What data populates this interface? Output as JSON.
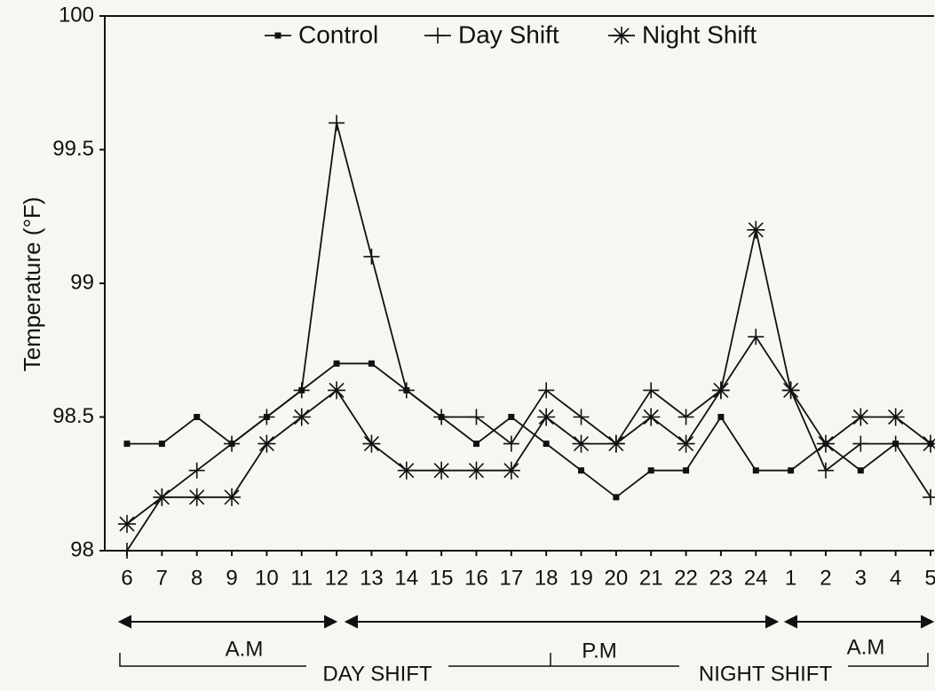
{
  "chart_data": {
    "type": "line",
    "ylabel": "Temperature (°F)",
    "categories": [
      "6",
      "7",
      "8",
      "9",
      "10",
      "11",
      "12",
      "13",
      "14",
      "15",
      "16",
      "17",
      "18",
      "19",
      "20",
      "21",
      "22",
      "23",
      "24",
      "1",
      "2",
      "3",
      "4",
      "5"
    ],
    "series": [
      {
        "name": "Control",
        "color": "#111111",
        "marker": "square",
        "values": [
          98.4,
          98.4,
          98.5,
          98.4,
          98.5,
          98.6,
          98.7,
          98.7,
          98.6,
          98.5,
          98.4,
          98.5,
          98.4,
          98.3,
          98.2,
          98.3,
          98.3,
          98.5,
          98.3,
          98.3,
          98.4,
          98.3,
          98.4,
          98.4
        ]
      },
      {
        "name": "Day Shift",
        "color": "#111111",
        "marker": "plus",
        "values": [
          98.0,
          98.2,
          98.3,
          98.4,
          98.5,
          98.6,
          99.6,
          99.1,
          98.6,
          98.5,
          98.5,
          98.4,
          98.6,
          98.5,
          98.4,
          98.6,
          98.5,
          98.6,
          98.8,
          98.6,
          98.3,
          98.4,
          98.4,
          98.2
        ]
      },
      {
        "name": "Night Shift",
        "color": "#111111",
        "marker": "star",
        "values": [
          98.1,
          98.2,
          98.2,
          98.2,
          98.4,
          98.5,
          98.6,
          98.4,
          98.3,
          98.3,
          98.3,
          98.3,
          98.5,
          98.4,
          98.4,
          98.5,
          98.4,
          98.6,
          99.2,
          98.6,
          98.4,
          98.5,
          98.5,
          98.4
        ]
      }
    ],
    "ylim": [
      98,
      100
    ],
    "yticks": [
      98,
      98.5,
      99,
      99.5,
      100
    ],
    "legend": "top",
    "annotations": [
      {
        "text": "A.M"
      },
      {
        "text": "P.M"
      },
      {
        "text": "A.M"
      },
      {
        "text": "DAY SHIFT"
      },
      {
        "text": "NIGHT SHIFT"
      }
    ]
  }
}
